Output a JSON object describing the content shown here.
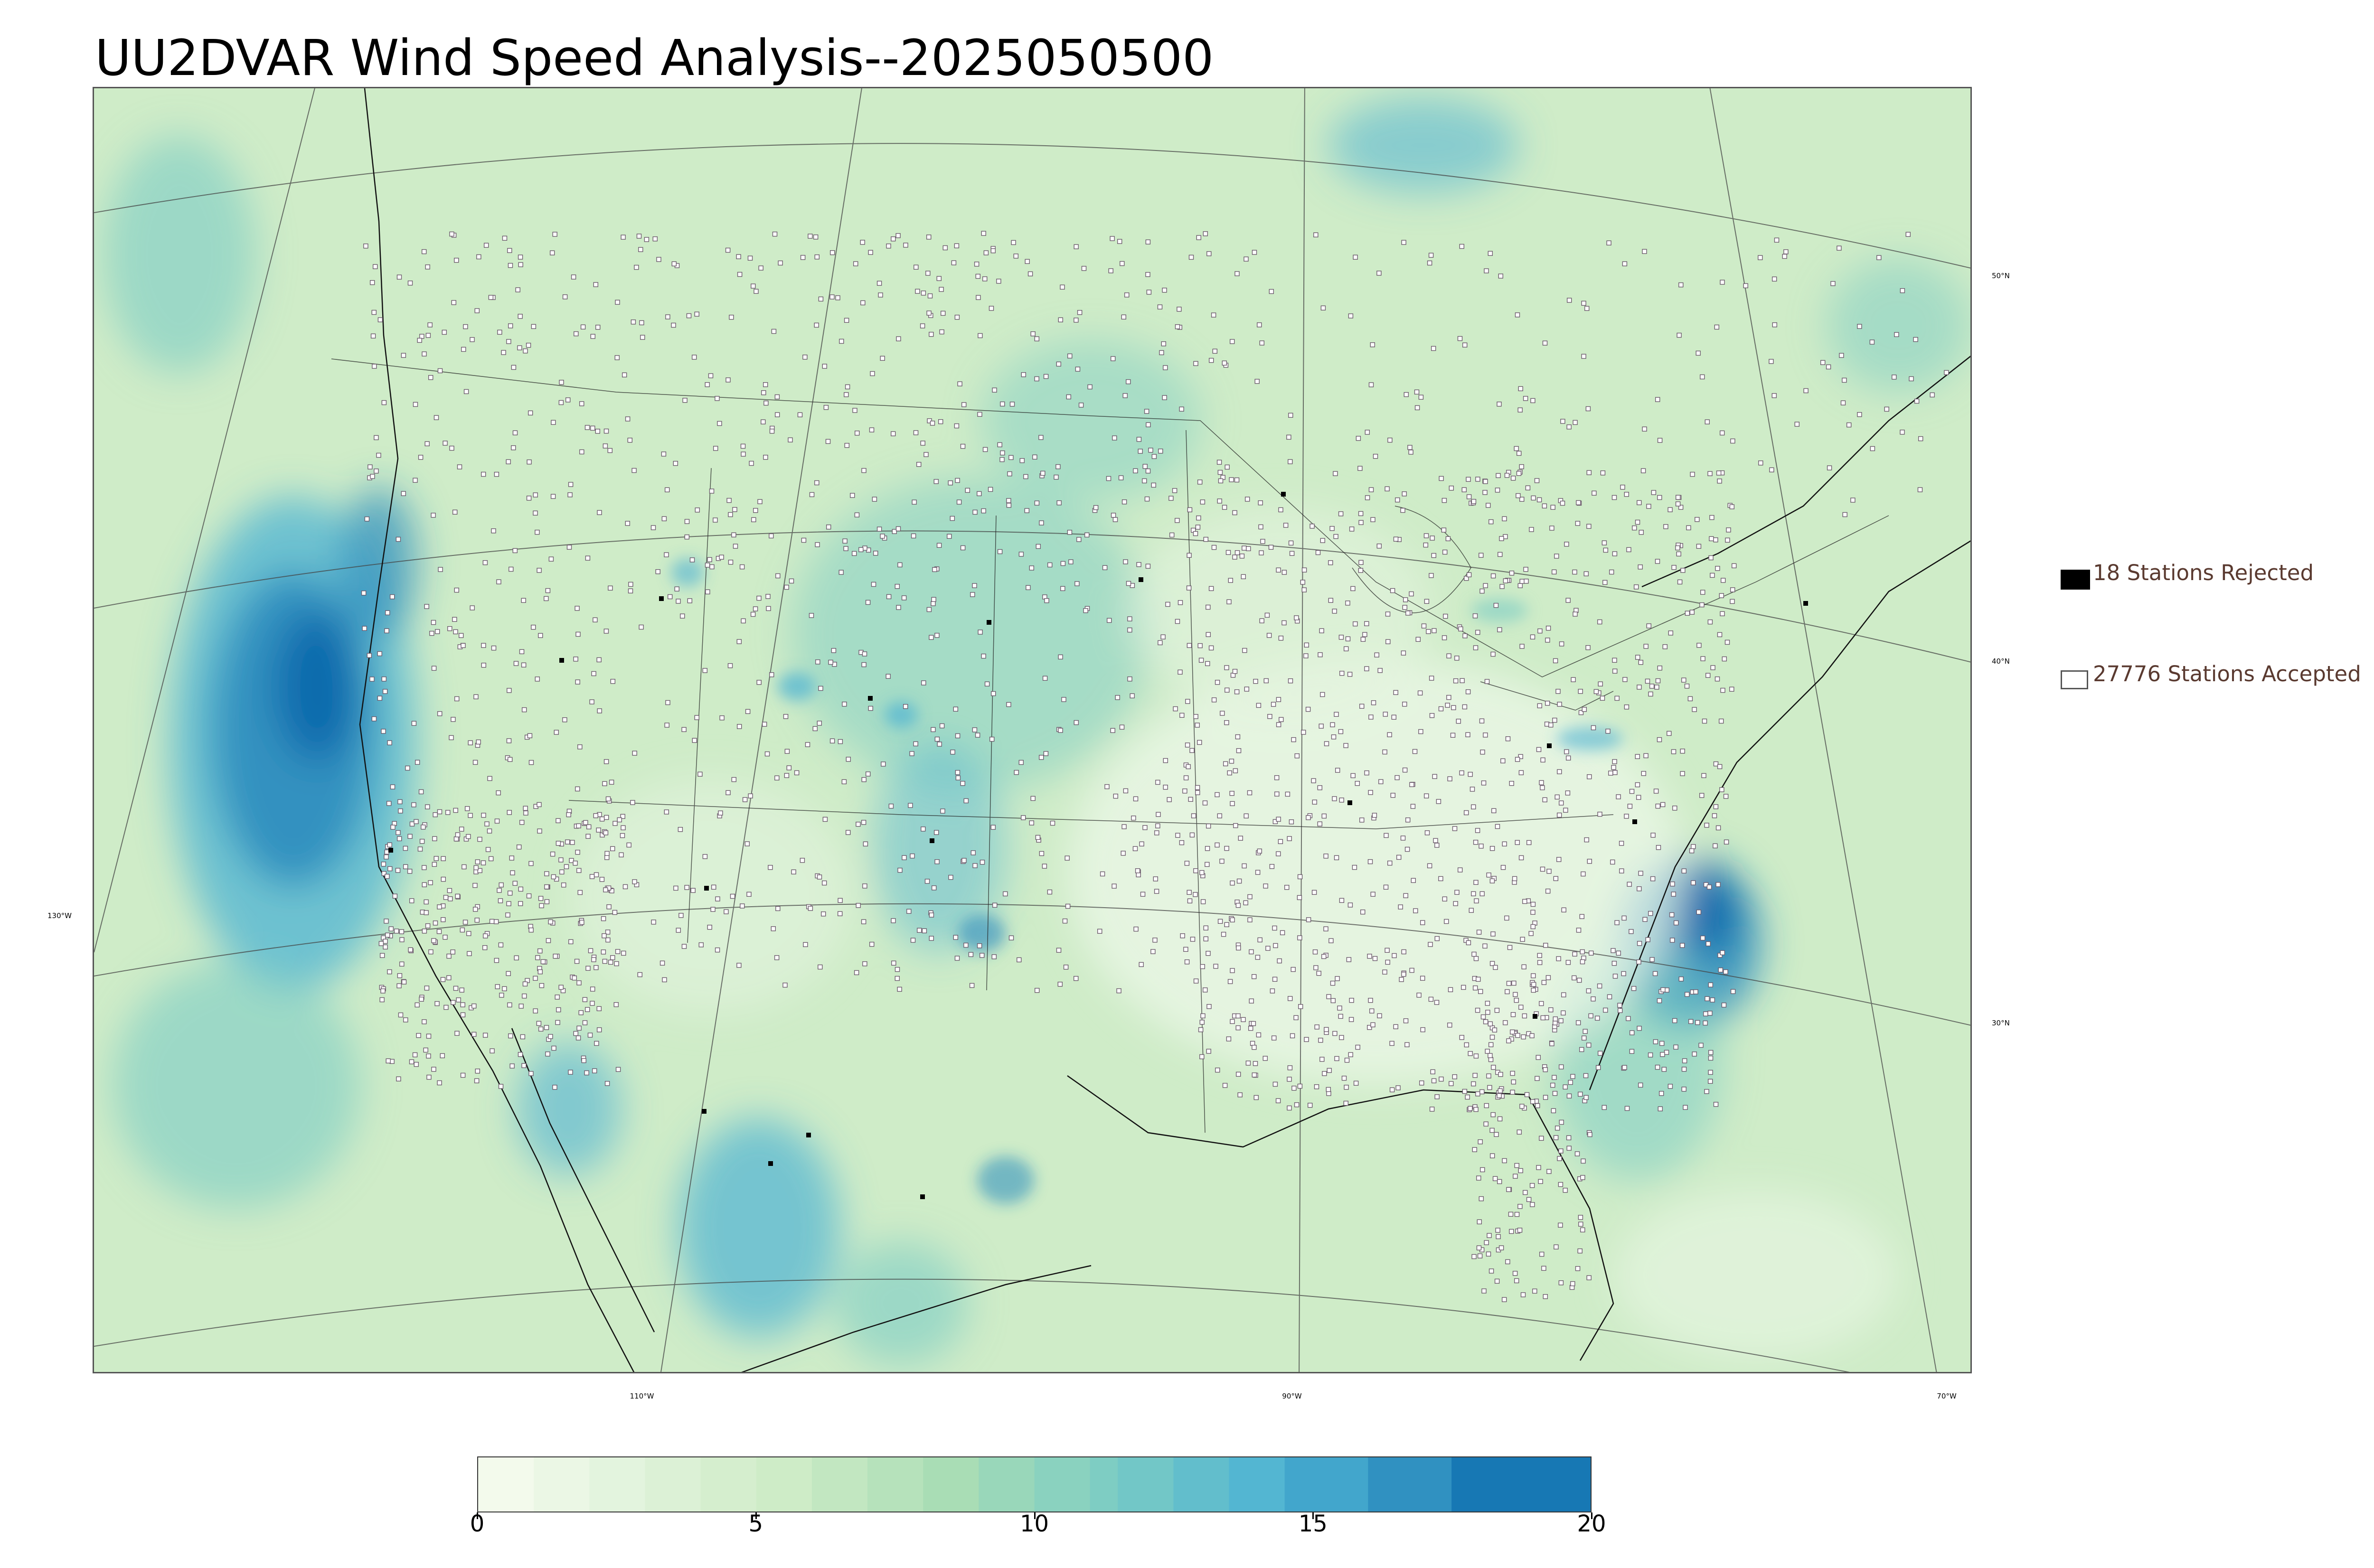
{
  "title": "UU2DVAR Wind Speed Analysis--2025050500",
  "map": {
    "projection": "lambert-conformal",
    "field": "wind speed",
    "palette": [
      "#f7fcf0",
      "#e0f3db",
      "#ccebc5",
      "#a8ddb5",
      "#7bccc4",
      "#4eb3d3",
      "#2b8cbe",
      "#0868ac"
    ],
    "latitude_labels": [
      "50°N",
      "40°N",
      "30°N"
    ],
    "longitude_labels": [
      "130°W",
      "110°W",
      "90°W",
      "70°W"
    ]
  },
  "legend": {
    "rejected_label": "18 Stations Rejected",
    "accepted_label": "27776 Stations Accepted",
    "rejected_color": "#000000",
    "accepted_color": "#ffffff"
  },
  "colorbar": {
    "min": 0,
    "max": 20,
    "ticks": [
      "0",
      "5",
      "10",
      "15",
      "20"
    ],
    "levels": [
      0,
      1,
      2,
      3,
      4,
      5,
      6,
      7,
      8,
      9,
      10,
      11,
      11.5,
      12.5,
      13.5,
      14.5,
      16,
      17.5,
      20
    ]
  }
}
